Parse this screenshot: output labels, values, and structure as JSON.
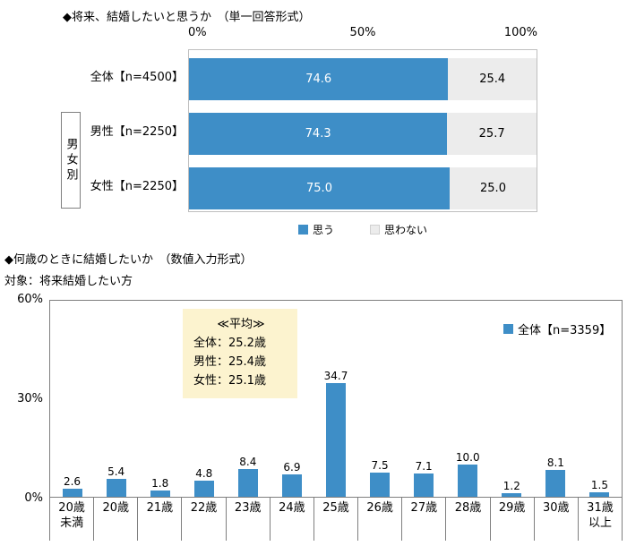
{
  "colors": {
    "bar_blue": "#3e8ec7",
    "bar_gray": "#ececec",
    "avg_box_bg": "#fcf3cf"
  },
  "chart_data": [
    {
      "type": "bar",
      "orientation": "horizontal-stacked",
      "title": "◆将来、結婚したいと思うか　（単一回答形式）",
      "x_ticks": [
        "0%",
        "50%",
        "100%"
      ],
      "xlim": [
        0,
        100
      ],
      "grid": false,
      "legend_position": "bottom",
      "group_label": "男女別",
      "categories": [
        "全体【n=4500】",
        "男性【n=2250】",
        "女性【n=2250】"
      ],
      "series": [
        {
          "name": "思う",
          "values": [
            74.6,
            74.3,
            75.0
          ],
          "value_labels": [
            "74.6",
            "74.3",
            "75.0"
          ]
        },
        {
          "name": "思わない",
          "values": [
            25.4,
            25.7,
            25.0
          ],
          "value_labels": [
            "25.4",
            "25.7",
            "25.0"
          ]
        }
      ]
    },
    {
      "type": "bar",
      "title": "◆何歳のときに結婚したいか　（数値入力形式）",
      "subtitle": "対象：将来結婚したい方",
      "legend": "全体【n=3359】",
      "legend_position": "top-right-inside",
      "y_ticks": [
        "60%",
        "30%",
        "0%"
      ],
      "ylim": [
        0,
        60
      ],
      "grid": false,
      "categories": [
        "20歳未満",
        "20歳",
        "21歳",
        "22歳",
        "23歳",
        "24歳",
        "25歳",
        "26歳",
        "27歳",
        "28歳",
        "29歳",
        "30歳",
        "31歳以上"
      ],
      "tick_labels": [
        "20歳\n未満",
        "20歳",
        "21歳",
        "22歳",
        "23歳",
        "24歳",
        "25歳",
        "26歳",
        "27歳",
        "28歳",
        "29歳",
        "30歳",
        "31歳\n以上"
      ],
      "values": [
        2.6,
        5.4,
        1.8,
        4.8,
        8.4,
        6.9,
        34.7,
        7.5,
        7.1,
        10.0,
        1.2,
        8.1,
        1.5
      ],
      "value_labels": [
        "2.6",
        "5.4",
        "1.8",
        "4.8",
        "8.4",
        "6.9",
        "34.7",
        "7.5",
        "7.1",
        "10.0",
        "1.2",
        "8.1",
        "1.5"
      ],
      "annotation": {
        "title": "≪平均≫",
        "lines": [
          "全体：25.2歳",
          "男性：25.4歳",
          "女性：25.1歳"
        ]
      }
    }
  ]
}
